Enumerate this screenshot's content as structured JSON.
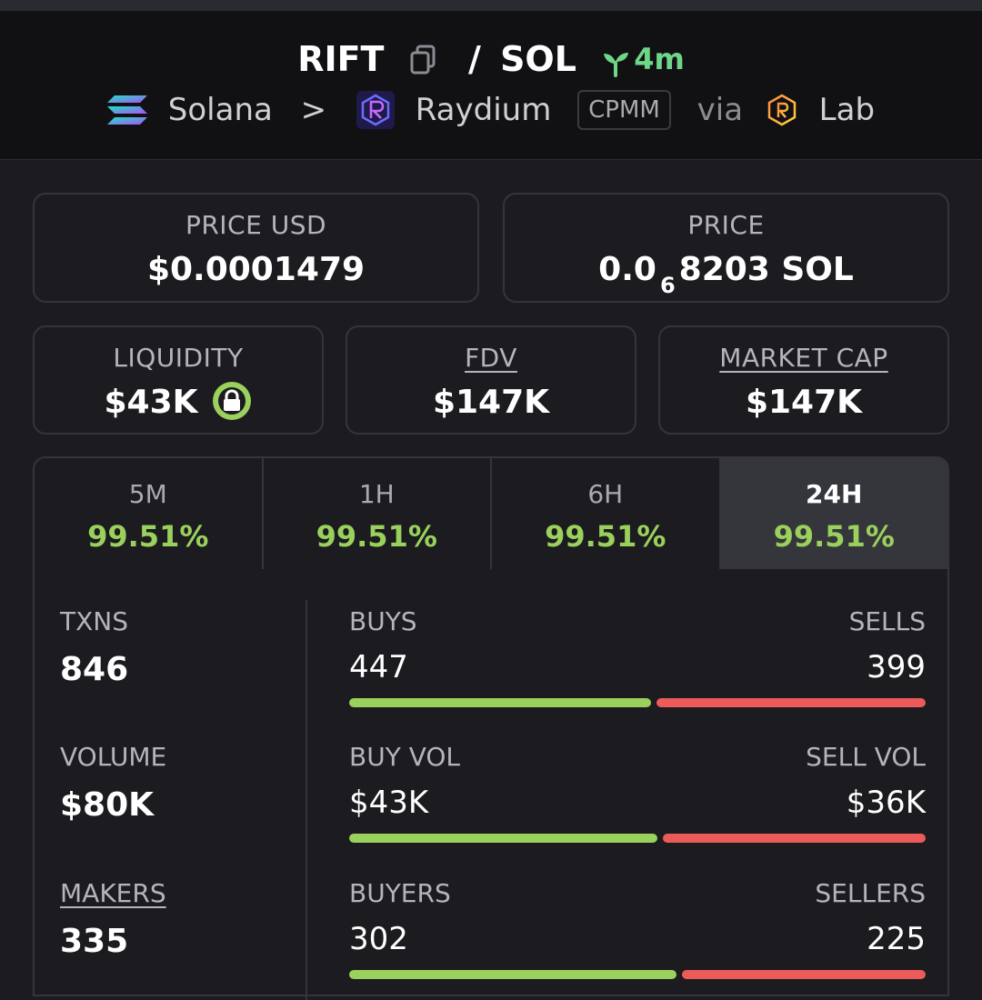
{
  "header": {
    "base": "RIFT",
    "slash": "/",
    "quote": "SOL",
    "age": "4m",
    "chain": "Solana",
    "chevron": ">",
    "dex": "Raydium",
    "pool_type": "CPMM",
    "via": "via",
    "launchpad": "Lab"
  },
  "prices": {
    "usd_label": "PRICE USD",
    "usd_value": "$0.0001479",
    "native_label": "PRICE",
    "native_prefix": "0.0",
    "native_zeros": "6",
    "native_rest": "8203 SOL"
  },
  "metrics": {
    "liquidity_label": "LIQUIDITY",
    "liquidity_value": "$43K",
    "fdv_label": "FDV",
    "fdv_value": "$147K",
    "mcap_label": "MARKET CAP",
    "mcap_value": "$147K"
  },
  "tabs": [
    {
      "label": "5M",
      "value": "99.51%"
    },
    {
      "label": "1H",
      "value": "99.51%"
    },
    {
      "label": "6H",
      "value": "99.51%"
    },
    {
      "label": "24H",
      "value": "99.51%"
    }
  ],
  "stats": {
    "txns_label": "TXNS",
    "txns_value": "846",
    "volume_label": "VOLUME",
    "volume_value": "$80K",
    "makers_label": "MAKERS",
    "makers_value": "335"
  },
  "breakdown": [
    {
      "left_label": "BUYS",
      "right_label": "SELLS",
      "left_value": "447",
      "right_value": "399",
      "left_share": 0.528
    },
    {
      "left_label": "BUY VOL",
      "right_label": "SELL VOL",
      "left_value": "$43K",
      "right_value": "$36K",
      "left_share": 0.54
    },
    {
      "left_label": "BUYERS",
      "right_label": "SELLERS",
      "left_value": "302",
      "right_value": "225",
      "left_share": 0.573
    }
  ],
  "colors": {
    "buy": "#9ad15c",
    "sell": "#ec5a5a",
    "age": "#6fd688"
  },
  "icons": {
    "copy": "copy-icon",
    "sprout": "sprout-icon",
    "chain": "solana-logo-icon",
    "dex": "raydium-logo-icon",
    "launchpad": "lab-logo-icon",
    "lock": "lock-icon"
  }
}
